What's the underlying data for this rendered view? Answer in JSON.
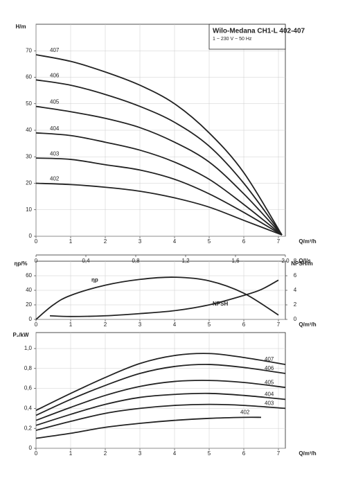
{
  "chart_data": [
    {
      "type": "line",
      "title": "Wilo-Medana CH1-L 402-407",
      "subtitle": "1 ~ 230 V ~ 50 Hz",
      "ylabel": "H/m",
      "xlabel": "Q/m³/h",
      "x2label": "Q/l/s",
      "xlim": [
        0,
        7.2
      ],
      "xticks": [
        0,
        1,
        2,
        3,
        4,
        5,
        6,
        7
      ],
      "ylim": [
        0,
        80
      ],
      "yticks": [
        0,
        10,
        20,
        30,
        40,
        50,
        60,
        70
      ],
      "x2lim": [
        0,
        2
      ],
      "x2ticks": [
        0,
        {
          "value": 0.4,
          "label": "0,4"
        },
        {
          "value": 0.8,
          "label": "0,8"
        },
        {
          "value": 1.2,
          "label": "1,2"
        },
        {
          "value": 1.6,
          "label": "1,6"
        },
        {
          "value": 2,
          "label": "2,0"
        }
      ],
      "grid": true,
      "series": [
        {
          "name": "407",
          "color": "#222222",
          "x": [
            0,
            1,
            2,
            3,
            4,
            5,
            6,
            7.1
          ],
          "values": [
            68.5,
            66,
            62,
            57,
            50,
            39,
            24,
            0.5
          ]
        },
        {
          "name": "406",
          "color": "#222222",
          "x": [
            0,
            1,
            2,
            3,
            4,
            5,
            6,
            7.1
          ],
          "values": [
            59,
            57,
            53.5,
            49,
            43,
            34,
            20,
            0.5
          ]
        },
        {
          "name": "405",
          "color": "#222222",
          "x": [
            0,
            1,
            2,
            3,
            4,
            5,
            6,
            7.1
          ],
          "values": [
            49,
            47,
            44.5,
            41,
            35.5,
            28,
            16,
            0.5
          ]
        },
        {
          "name": "404",
          "color": "#222222",
          "x": [
            0,
            1,
            2,
            3,
            4,
            5,
            6,
            7.1
          ],
          "values": [
            39,
            38,
            35.5,
            32.5,
            28,
            21.5,
            12,
            0.5
          ]
        },
        {
          "name": "403",
          "color": "#222222",
          "x": [
            0,
            1,
            2,
            3,
            4,
            5,
            6,
            7.1
          ],
          "values": [
            29.5,
            29,
            27,
            25,
            21.5,
            16,
            9,
            0.5
          ]
        },
        {
          "name": "402",
          "color": "#222222",
          "x": [
            0,
            1,
            2,
            3,
            4,
            5,
            6,
            7.1
          ],
          "values": [
            20,
            19.5,
            18.5,
            17,
            14.5,
            11,
            6,
            0.5
          ]
        }
      ]
    },
    {
      "type": "line",
      "ylabel": "ηp/%",
      "y2label": "NPSH/m",
      "xlabel": "Q/m³/h",
      "xlim": [
        0,
        7.2
      ],
      "xticks": [
        0,
        1,
        2,
        3,
        4,
        5,
        6,
        7
      ],
      "ylim": [
        0,
        80
      ],
      "yticks": [
        0,
        20,
        40,
        60
      ],
      "y2lim": [
        0,
        8
      ],
      "y2ticks": [
        0,
        2,
        4,
        6,
        8
      ],
      "grid": true,
      "series": [
        {
          "name": "ηp",
          "color": "#222222",
          "x": [
            0,
            0.5,
            1,
            2,
            3,
            4,
            5,
            6,
            7
          ],
          "values": [
            0,
            20,
            33,
            47,
            55,
            58,
            53,
            36,
            6
          ]
        },
        {
          "name": "NPSH",
          "color": "#222222",
          "axis": "y2",
          "x": [
            0.4,
            1,
            2,
            3,
            4,
            5,
            6,
            6.5,
            7
          ],
          "values": [
            0.5,
            0.4,
            0.5,
            0.8,
            1.2,
            2,
            3.3,
            4.1,
            5.4
          ]
        }
      ]
    },
    {
      "type": "line",
      "ylabel": "P₂/kW",
      "xlabel": "Q/m³/h",
      "xlim": [
        0,
        7.2
      ],
      "xticks": [
        0,
        1,
        2,
        3,
        4,
        5,
        6,
        7
      ],
      "ylim": [
        0,
        1.16
      ],
      "yticks": [
        0,
        {
          "value": 0.2,
          "label": "0,2"
        },
        {
          "value": 0.4,
          "label": "0,4"
        },
        {
          "value": 0.6,
          "label": "0,6"
        },
        {
          "value": 0.8,
          "label": "0,8"
        },
        {
          "value": 1,
          "label": "1,0"
        }
      ],
      "grid": true,
      "series": [
        {
          "name": "407",
          "color": "#222222",
          "x": [
            0,
            1,
            2,
            3,
            4,
            5,
            6,
            7.2
          ],
          "values": [
            0.38,
            0.55,
            0.71,
            0.85,
            0.93,
            0.95,
            0.91,
            0.84
          ]
        },
        {
          "name": "406",
          "color": "#222222",
          "x": [
            0,
            1,
            2,
            3,
            4,
            5,
            6,
            7.2
          ],
          "values": [
            0.33,
            0.49,
            0.63,
            0.75,
            0.82,
            0.84,
            0.81,
            0.75
          ]
        },
        {
          "name": "405",
          "color": "#222222",
          "x": [
            0,
            1,
            2,
            3,
            4,
            5,
            6,
            7.2
          ],
          "values": [
            0.28,
            0.41,
            0.53,
            0.62,
            0.67,
            0.68,
            0.66,
            0.61
          ]
        },
        {
          "name": "404",
          "color": "#222222",
          "x": [
            0,
            1,
            2,
            3,
            4,
            5,
            6,
            7.2
          ],
          "values": [
            0.23,
            0.34,
            0.44,
            0.51,
            0.54,
            0.55,
            0.53,
            0.49
          ]
        },
        {
          "name": "403",
          "color": "#222222",
          "x": [
            0,
            1,
            2,
            3,
            4,
            5,
            6,
            7.2
          ],
          "values": [
            0.18,
            0.27,
            0.35,
            0.4,
            0.43,
            0.44,
            0.43,
            0.4
          ]
        },
        {
          "name": "402",
          "color": "#222222",
          "x": [
            0,
            1,
            2,
            3,
            4,
            5,
            6,
            6.5
          ],
          "values": [
            0.1,
            0.15,
            0.21,
            0.25,
            0.28,
            0.3,
            0.31,
            0.31
          ]
        }
      ]
    }
  ]
}
